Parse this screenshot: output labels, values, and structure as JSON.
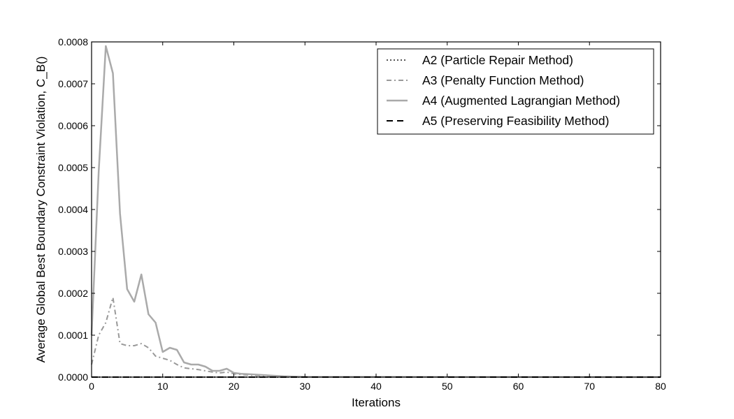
{
  "chart_data": {
    "type": "line",
    "xlabel": "Iterations",
    "ylabel": "Average Global Best Boundary Constraint Violation, C_B()",
    "xlim": [
      0,
      80
    ],
    "ylim": [
      0,
      0.0008
    ],
    "x_ticks": [
      "0",
      "10",
      "20",
      "30",
      "40",
      "50",
      "60",
      "70",
      "80"
    ],
    "y_ticks": [
      "0.0000",
      "0.0001",
      "0.0002",
      "0.0003",
      "0.0004",
      "0.0005",
      "0.0006",
      "0.0007",
      "0.0008"
    ],
    "grid": false,
    "legend_position": "top-right",
    "series": [
      {
        "name": "A2 (Particle Repair Method)",
        "style": "dotted",
        "color": "#555555",
        "x": [
          0,
          80
        ],
        "y": [
          0,
          0
        ]
      },
      {
        "name": "A3 (Penalty Function Method)",
        "style": "dashdot",
        "color": "#999999",
        "x": [
          0,
          1,
          2,
          3,
          4,
          5,
          6,
          7,
          8,
          9,
          10,
          11,
          12,
          13,
          14,
          15,
          16,
          17,
          18,
          19,
          20,
          21,
          22,
          23,
          24,
          25,
          26,
          27,
          28,
          29,
          30,
          80
        ],
        "y": [
          3e-05,
          0.0001,
          0.00013,
          0.00019,
          8e-05,
          7.5e-05,
          7.5e-05,
          8e-05,
          7e-05,
          5e-05,
          4.5e-05,
          4e-05,
          3e-05,
          2.2e-05,
          2e-05,
          1.8e-05,
          1.5e-05,
          1.2e-05,
          1e-05,
          1.2e-05,
          8e-06,
          6e-06,
          5e-06,
          4e-06,
          3e-06,
          2e-06,
          1.5e-06,
          1e-06,
          8e-07,
          5e-07,
          2e-07,
          0
        ]
      },
      {
        "name": "A4 (Augmented Lagrangian Method)",
        "style": "solid",
        "color": "#aaaaaa",
        "x": [
          0,
          1,
          2,
          3,
          4,
          5,
          6,
          7,
          8,
          9,
          10,
          11,
          12,
          13,
          14,
          15,
          16,
          17,
          18,
          19,
          20,
          21,
          22,
          23,
          24,
          25,
          26,
          27,
          28,
          29,
          30,
          80
        ],
        "y": [
          0.0001,
          0.00049,
          0.00079,
          0.000725,
          0.00039,
          0.00021,
          0.00018,
          0.000245,
          0.00015,
          0.00013,
          6e-05,
          7e-05,
          6.5e-05,
          3.5e-05,
          3e-05,
          3e-05,
          2.5e-05,
          1.5e-05,
          1.5e-05,
          2e-05,
          1e-05,
          8e-06,
          7e-06,
          6e-06,
          5e-06,
          4e-06,
          3e-06,
          2e-06,
          1.5e-06,
          1e-06,
          5e-07,
          0
        ]
      },
      {
        "name": "A5 (Preserving Feasibility Method)",
        "style": "dashed",
        "color": "#000000",
        "x": [
          0,
          80
        ],
        "y": [
          0,
          0
        ]
      }
    ]
  }
}
